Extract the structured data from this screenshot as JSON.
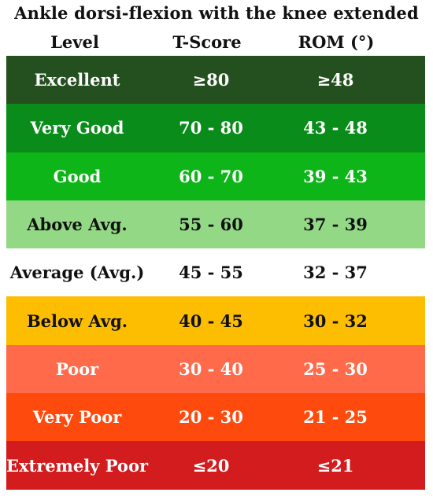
{
  "title": "Ankle dorsi-flexion with the knee extended",
  "columns": {
    "level": "Level",
    "t_score": "T-Score",
    "rom": "ROM (°)"
  },
  "rows": [
    {
      "level": "Excellent",
      "t_score": "≥80",
      "rom": "≥48",
      "bg": "#245020",
      "fg": "#ffffff"
    },
    {
      "level": "Very Good",
      "t_score": "70 - 80",
      "rom": "43 - 48",
      "bg": "#0a8c1a",
      "fg": "#ffffff"
    },
    {
      "level": "Good",
      "t_score": "60 - 70",
      "rom": "39 - 43",
      "bg": "#0db518",
      "fg": "#ffffff"
    },
    {
      "level": "Above Avg.",
      "t_score": "55 - 60",
      "rom": "37 - 39",
      "bg": "#93d985",
      "fg": "#111111"
    },
    {
      "level": "Average (Avg.)",
      "t_score": "45 - 55",
      "rom": "32 - 37",
      "bg": "#ffffff",
      "fg": "#111111"
    },
    {
      "level": "Below Avg.",
      "t_score": "40 - 45",
      "rom": "30 - 32",
      "bg": "#fdbd00",
      "fg": "#111111"
    },
    {
      "level": "Poor",
      "t_score": "30 - 40",
      "rom": "25 - 30",
      "bg": "#ff6a4a",
      "fg": "#ffffff"
    },
    {
      "level": "Very Poor",
      "t_score": "20 - 30",
      "rom": "21 - 25",
      "bg": "#ff4a0e",
      "fg": "#ffffff"
    },
    {
      "level": "Extremely Poor",
      "t_score": "≤20",
      "rom": "≤21",
      "bg": "#d21c1e",
      "fg": "#ffffff"
    }
  ]
}
